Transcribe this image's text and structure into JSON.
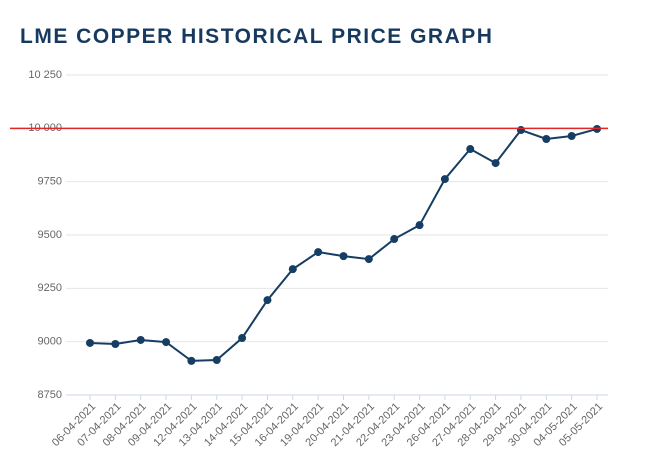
{
  "chart_data": {
    "type": "line",
    "title": "LME COPPER HISTORICAL PRICE GRAPH",
    "categories": [
      "06-04-2021",
      "07-04-2021",
      "08-04-2021",
      "09-04-2021",
      "12-04-2021",
      "13-04-2021",
      "14-04-2021",
      "15-04-2021",
      "16-04-2021",
      "19-04-2021",
      "20-04-2021",
      "21-04-2021",
      "22-04-2021",
      "23-04-2021",
      "26-04-2021",
      "27-04-2021",
      "28-04-2021",
      "29-04-2021",
      "30-04-2021",
      "04-05-2021",
      "05-05-2021"
    ],
    "series": [
      {
        "color": "#163d63",
        "values": [
          8994,
          8989,
          9008,
          8998,
          8910,
          8914,
          9017,
          9195,
          9340,
          9420,
          9401,
          9387,
          9481,
          9546,
          9762,
          9903,
          9837,
          9992,
          9950,
          9964,
          9997
        ]
      }
    ],
    "reference_line": {
      "value": 10000,
      "color": "#e02626"
    },
    "ylim": [
      8750,
      10250
    ],
    "yticks": [
      8750,
      9000,
      9250,
      9500,
      9750,
      {
        "value": 10000,
        "label": "10 000"
      },
      {
        "value": 10250,
        "label": "10 250"
      }
    ],
    "grid": true
  }
}
